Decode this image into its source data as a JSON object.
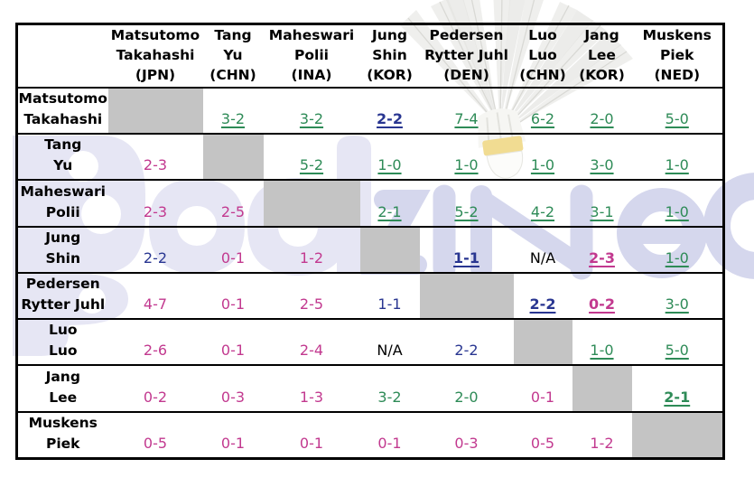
{
  "page": {
    "background": "#ffffff"
  },
  "watermark": {
    "brand_text": "Badzine",
    "light_part": "Bad",
    "dark_part": "ziNe",
    "light_color": "#E6E6F4",
    "dark_color": "#D5D7ED"
  },
  "shuttlecock_icon": {
    "feather_stroke": "#DCDCDC",
    "feather_fill": "#F1F1EF",
    "cork_band_color": "#F0DD9A",
    "cork_tip_color": "#FBFBF9"
  },
  "colors": {
    "win": "#2E8B57",
    "loss": "#C2398F",
    "tie": "#293691",
    "na": "#000000",
    "diagonal_fill": "#C4C4C4",
    "grid_line": "#000000",
    "header_text": "#000000"
  },
  "table": {
    "columns": [
      {
        "line1": "Matsutomo",
        "line2": "Takahashi",
        "country": "(JPN)"
      },
      {
        "line1": "Tang",
        "line2": "Yu",
        "country": "(CHN)"
      },
      {
        "line1": "Maheswari",
        "line2": "Polii",
        "country": "(INA)"
      },
      {
        "line1": "Jung",
        "line2": "Shin",
        "country": "(KOR)"
      },
      {
        "line1": "Pedersen",
        "line2": "Rytter Juhl",
        "country": "(DEN)"
      },
      {
        "line1": "Luo",
        "line2": "Luo",
        "country": "(CHN)"
      },
      {
        "line1": "Jang",
        "line2": "Lee",
        "country": "(KOR)"
      },
      {
        "line1": "Muskens",
        "line2": "Piek",
        "country": "(NED)"
      }
    ],
    "rows": [
      {
        "line1": "Matsutomo",
        "line2": "Takahashi",
        "cells": [
          null,
          {
            "value": "3-2",
            "result": "win",
            "underline": true,
            "bold": false
          },
          {
            "value": "3-2",
            "result": "win",
            "underline": true,
            "bold": false
          },
          {
            "value": "2-2",
            "result": "tie",
            "underline": true,
            "bold": true
          },
          {
            "value": "7-4",
            "result": "win",
            "underline": true,
            "bold": false
          },
          {
            "value": "6-2",
            "result": "win",
            "underline": true,
            "bold": false
          },
          {
            "value": "2-0",
            "result": "win",
            "underline": true,
            "bold": false
          },
          {
            "value": "5-0",
            "result": "win",
            "underline": true,
            "bold": false
          }
        ]
      },
      {
        "line1": "Tang",
        "line2": "Yu",
        "cells": [
          {
            "value": "2-3",
            "result": "loss",
            "underline": false,
            "bold": false
          },
          null,
          {
            "value": "5-2",
            "result": "win",
            "underline": true,
            "bold": false
          },
          {
            "value": "1-0",
            "result": "win",
            "underline": true,
            "bold": false
          },
          {
            "value": "1-0",
            "result": "win",
            "underline": true,
            "bold": false
          },
          {
            "value": "1-0",
            "result": "win",
            "underline": true,
            "bold": false
          },
          {
            "value": "3-0",
            "result": "win",
            "underline": true,
            "bold": false
          },
          {
            "value": "1-0",
            "result": "win",
            "underline": true,
            "bold": false
          }
        ]
      },
      {
        "line1": "Maheswari",
        "line2": "Polii",
        "cells": [
          {
            "value": "2-3",
            "result": "loss",
            "underline": false,
            "bold": false
          },
          {
            "value": "2-5",
            "result": "loss",
            "underline": false,
            "bold": false
          },
          null,
          {
            "value": "2-1",
            "result": "win",
            "underline": true,
            "bold": false
          },
          {
            "value": "5-2",
            "result": "win",
            "underline": true,
            "bold": false
          },
          {
            "value": "4-2",
            "result": "win",
            "underline": true,
            "bold": false
          },
          {
            "value": "3-1",
            "result": "win",
            "underline": true,
            "bold": false
          },
          {
            "value": "1-0",
            "result": "win",
            "underline": true,
            "bold": false
          }
        ]
      },
      {
        "line1": "Jung",
        "line2": "Shin",
        "cells": [
          {
            "value": "2-2",
            "result": "tie",
            "underline": false,
            "bold": false
          },
          {
            "value": "0-1",
            "result": "loss",
            "underline": false,
            "bold": false
          },
          {
            "value": "1-2",
            "result": "loss",
            "underline": false,
            "bold": false
          },
          null,
          {
            "value": "1-1",
            "result": "tie",
            "underline": true,
            "bold": true
          },
          {
            "value": "N/A",
            "result": "na",
            "underline": false,
            "bold": false
          },
          {
            "value": "2-3",
            "result": "loss",
            "underline": true,
            "bold": true
          },
          {
            "value": "1-0",
            "result": "win",
            "underline": true,
            "bold": false
          }
        ]
      },
      {
        "line1": "Pedersen",
        "line2": "Rytter Juhl",
        "cells": [
          {
            "value": "4-7",
            "result": "loss",
            "underline": false,
            "bold": false
          },
          {
            "value": "0-1",
            "result": "loss",
            "underline": false,
            "bold": false
          },
          {
            "value": "2-5",
            "result": "loss",
            "underline": false,
            "bold": false
          },
          {
            "value": "1-1",
            "result": "tie",
            "underline": false,
            "bold": false
          },
          null,
          {
            "value": "2-2",
            "result": "tie",
            "underline": true,
            "bold": true
          },
          {
            "value": "0-2",
            "result": "loss",
            "underline": true,
            "bold": true
          },
          {
            "value": "3-0",
            "result": "win",
            "underline": true,
            "bold": false
          }
        ]
      },
      {
        "line1": "Luo",
        "line2": "Luo",
        "cells": [
          {
            "value": "2-6",
            "result": "loss",
            "underline": false,
            "bold": false
          },
          {
            "value": "0-1",
            "result": "loss",
            "underline": false,
            "bold": false
          },
          {
            "value": "2-4",
            "result": "loss",
            "underline": false,
            "bold": false
          },
          {
            "value": "N/A",
            "result": "na",
            "underline": false,
            "bold": false
          },
          {
            "value": "2-2",
            "result": "tie",
            "underline": false,
            "bold": false
          },
          null,
          {
            "value": "1-0",
            "result": "win",
            "underline": true,
            "bold": false
          },
          {
            "value": "5-0",
            "result": "win",
            "underline": true,
            "bold": false
          }
        ]
      },
      {
        "line1": "Jang",
        "line2": "Lee",
        "cells": [
          {
            "value": "0-2",
            "result": "loss",
            "underline": false,
            "bold": false
          },
          {
            "value": "0-3",
            "result": "loss",
            "underline": false,
            "bold": false
          },
          {
            "value": "1-3",
            "result": "loss",
            "underline": false,
            "bold": false
          },
          {
            "value": "3-2",
            "result": "win",
            "underline": false,
            "bold": false
          },
          {
            "value": "2-0",
            "result": "win",
            "underline": false,
            "bold": false
          },
          {
            "value": "0-1",
            "result": "loss",
            "underline": false,
            "bold": false
          },
          null,
          {
            "value": "2-1",
            "result": "win",
            "underline": true,
            "bold": true
          }
        ]
      },
      {
        "line1": "Muskens",
        "line2": "Piek",
        "cells": [
          {
            "value": "0-5",
            "result": "loss",
            "underline": false,
            "bold": false
          },
          {
            "value": "0-1",
            "result": "loss",
            "underline": false,
            "bold": false
          },
          {
            "value": "0-1",
            "result": "loss",
            "underline": false,
            "bold": false
          },
          {
            "value": "0-1",
            "result": "loss",
            "underline": false,
            "bold": false
          },
          {
            "value": "0-3",
            "result": "loss",
            "underline": false,
            "bold": false
          },
          {
            "value": "0-5",
            "result": "loss",
            "underline": false,
            "bold": false
          },
          {
            "value": "1-2",
            "result": "loss",
            "underline": false,
            "bold": false
          },
          null
        ]
      }
    ]
  }
}
